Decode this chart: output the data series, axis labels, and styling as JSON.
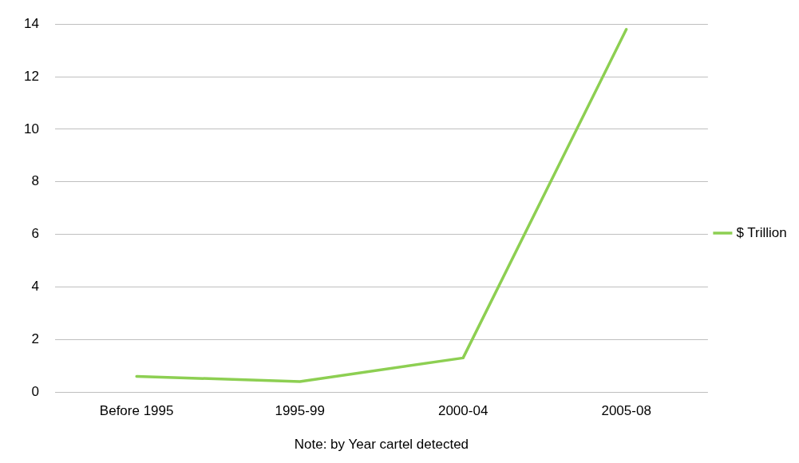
{
  "chart_data": {
    "type": "line",
    "xlabel": "Note: by Year cartel detected",
    "categories": [
      "Before 1995",
      "1995-99",
      "2000-04",
      "2005-08"
    ],
    "series": [
      {
        "name": "$ Trillion",
        "color": "#8dcf52",
        "values": [
          0.6,
          0.4,
          1.3,
          13.8
        ]
      }
    ],
    "ylim": [
      0,
      14
    ],
    "yticks": [
      0,
      2,
      4,
      6,
      8,
      10,
      12,
      14
    ],
    "grid": "y",
    "legend": "right",
    "marker": "none"
  }
}
